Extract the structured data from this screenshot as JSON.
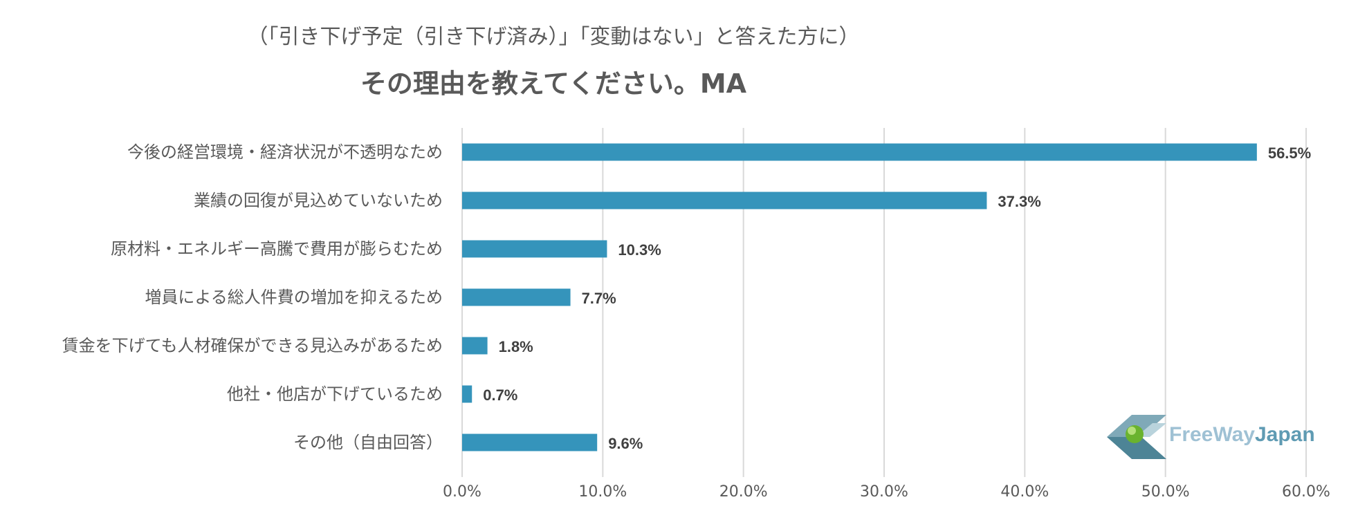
{
  "header": {
    "subtitle": "（「引き下げ予定（引き下げ済み）」「変動はない」と答えた方に）",
    "title": "その理由を教えてください。MA"
  },
  "chart_data": {
    "type": "bar",
    "orientation": "horizontal",
    "categories": [
      "今後の経営環境・経済状況が不透明なため",
      "業績の回復が見込めていないため",
      "原材料・エネルギー高騰で費用が膨らむため",
      "増員による総人件費の増加を抑えるため",
      "賃金を下げても人材確保ができる見込みがあるため",
      "他社・他店が下げているため",
      "その他（自由回答）"
    ],
    "values": [
      56.5,
      37.3,
      10.3,
      7.7,
      1.8,
      0.7,
      9.6
    ],
    "data_labels": [
      "56.5%",
      "37.3%",
      "10.3%",
      "7.7%",
      "1.8%",
      "0.7%",
      "9.6%"
    ],
    "xlim": [
      0,
      60
    ],
    "x_ticks": [
      0,
      10,
      20,
      30,
      40,
      50,
      60
    ],
    "x_tick_labels": [
      "0.0%",
      "10.0%",
      "20.0%",
      "30.0%",
      "40.0%",
      "50.0%",
      "60.0%"
    ],
    "grid": true,
    "bar_color": "#3594bb",
    "grid_color": "#d9d9d9"
  },
  "logo": {
    "text_part1": "FreeWay",
    "text_part2": "Japan"
  }
}
